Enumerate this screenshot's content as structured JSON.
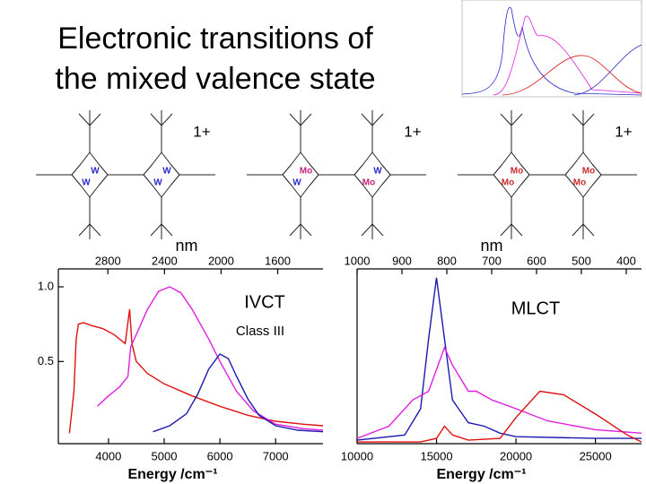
{
  "slide_title": [
    "Electronic transitions of",
    "the mixed valence state"
  ],
  "structures": [
    {
      "charge": "1+",
      "metals": [
        {
          "label": "W",
          "color": "#2a2ac8"
        },
        {
          "label": "W",
          "color": "#2a2ac8"
        },
        {
          "label": "W",
          "color": "#2a2ac8"
        },
        {
          "label": "W",
          "color": "#2a2ac8"
        }
      ]
    },
    {
      "charge": "1+",
      "metals": [
        {
          "label": "Mo",
          "color": "#c8207e"
        },
        {
          "label": "W",
          "color": "#2a2ac8"
        },
        {
          "label": "W",
          "color": "#2a2ac8"
        },
        {
          "label": "Mo",
          "color": "#c8207e"
        }
      ]
    },
    {
      "charge": "1+",
      "metals": [
        {
          "label": "Mo",
          "color": "#c82a2a"
        },
        {
          "label": "Mo",
          "color": "#c82a2a"
        },
        {
          "label": "Mo",
          "color": "#c82a2a"
        },
        {
          "label": "Mo",
          "color": "#c82a2a"
        }
      ]
    }
  ],
  "chart_data": [
    {
      "type": "line",
      "x_label": "Energy /cm⁻¹",
      "x2_label": "nm",
      "annotations": [
        "IVCT",
        "Class III"
      ],
      "xlim": [
        3100,
        7850
      ],
      "xticks": [
        4000,
        5000,
        6000,
        7000
      ],
      "x2lim": [
        3150,
        1280
      ],
      "x2ticks": [
        2800,
        2400,
        2000,
        1600
      ],
      "ylim": [
        -0.05,
        1.12
      ],
      "yticks": [
        {
          "value": 0.5,
          "label": "0.5"
        },
        {
          "value": 1.0,
          "label": "1.0"
        }
      ],
      "series": [
        {
          "color": "#e01010",
          "x": [
            3300,
            3380,
            3420,
            3460,
            3550,
            3700,
            3900,
            4100,
            4300,
            4380,
            4420,
            4500,
            4700,
            5000,
            5500,
            6000,
            6500,
            7000,
            7500,
            7850
          ],
          "values": [
            0.02,
            0.3,
            0.65,
            0.75,
            0.76,
            0.74,
            0.72,
            0.68,
            0.62,
            0.85,
            0.62,
            0.5,
            0.42,
            0.35,
            0.27,
            0.2,
            0.14,
            0.1,
            0.08,
            0.07
          ]
        },
        {
          "color": "#e020e0",
          "x": [
            3800,
            4000,
            4200,
            4350,
            4400,
            4500,
            4700,
            4900,
            5100,
            5300,
            5500,
            5800,
            6000,
            6300,
            6600,
            7000,
            7500,
            7850
          ],
          "values": [
            0.2,
            0.27,
            0.33,
            0.4,
            0.6,
            0.68,
            0.85,
            0.97,
            1.0,
            0.96,
            0.85,
            0.65,
            0.5,
            0.3,
            0.17,
            0.08,
            0.05,
            0.04
          ]
        },
        {
          "color": "#1a1ab0",
          "x": [
            4800,
            5100,
            5400,
            5600,
            5800,
            6000,
            6150,
            6300,
            6500,
            6700,
            7000,
            7400,
            7850
          ],
          "values": [
            0.03,
            0.07,
            0.15,
            0.28,
            0.45,
            0.55,
            0.52,
            0.4,
            0.25,
            0.14,
            0.07,
            0.04,
            0.03
          ]
        }
      ]
    },
    {
      "type": "line",
      "x_label": "Energy /cm⁻¹",
      "x2_label": "nm",
      "annotations": [
        "MLCT"
      ],
      "xlim": [
        10000,
        27900
      ],
      "xticks": [
        10000,
        15000,
        20000,
        25000
      ],
      "x2lim": [
        1000,
        366
      ],
      "x2ticks": [
        1000,
        900,
        800,
        700,
        600,
        500,
        400
      ],
      "ylim": [
        0,
        1
      ],
      "series": [
        {
          "color": "#1a1ab0",
          "x": [
            10000,
            13000,
            14000,
            14500,
            15000,
            15500,
            16000,
            17000,
            18000,
            19000,
            20000,
            25000,
            27900
          ],
          "values": [
            0.02,
            0.05,
            0.2,
            0.6,
            0.95,
            0.6,
            0.25,
            0.12,
            0.1,
            0.06,
            0.04,
            0.03,
            0.03
          ]
        },
        {
          "color": "#e020e0",
          "x": [
            10000,
            12000,
            13500,
            14500,
            15500,
            16000,
            17000,
            17500,
            18500,
            20000,
            22000,
            25000,
            27900
          ],
          "values": [
            0.03,
            0.1,
            0.25,
            0.3,
            0.55,
            0.45,
            0.3,
            0.3,
            0.25,
            0.2,
            0.13,
            0.08,
            0.06
          ]
        },
        {
          "color": "#e01010",
          "x": [
            10000,
            14000,
            15000,
            15500,
            16000,
            17000,
            19000,
            20000,
            21500,
            23000,
            25000,
            27000,
            27900
          ],
          "values": [
            0.01,
            0.01,
            0.03,
            0.1,
            0.05,
            0.02,
            0.03,
            0.15,
            0.3,
            0.28,
            0.17,
            0.05,
            0.01
          ]
        }
      ]
    }
  ]
}
